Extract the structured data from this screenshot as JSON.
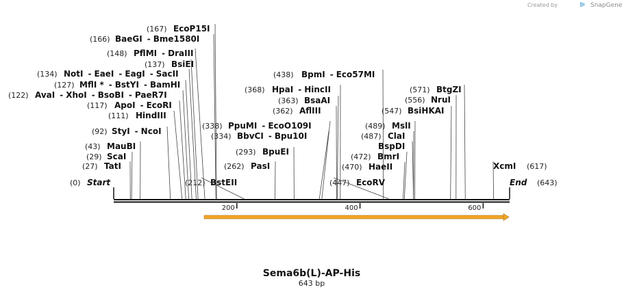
{
  "credit": {
    "prefix": "Created by",
    "brand": "SnapGene"
  },
  "title": "Sema6b(L)-AP-His",
  "subtitle": "643 bp",
  "sequence": {
    "length": 643
  },
  "ruler": {
    "ticks": [
      200,
      400,
      600
    ]
  },
  "feature": {
    "start": 147,
    "end": 643,
    "direction": "forward",
    "color": "#f2a629"
  },
  "ends": {
    "start": {
      "label": "Start",
      "pos": "(0)"
    },
    "end": {
      "label": "End",
      "pos": "(643)"
    }
  },
  "sites": [
    {
      "pos": "(167)",
      "names": [
        "EcoP15I"
      ],
      "site": 167
    },
    {
      "pos": "(166)",
      "names": [
        "BaeGI",
        "Bme1580I"
      ],
      "site": 166
    },
    {
      "pos": "(148)",
      "names": [
        "PflMI",
        "DraIII"
      ],
      "site": 148
    },
    {
      "pos": "(137)",
      "names": [
        "BsiEI"
      ],
      "site": 137
    },
    {
      "pos": "(134)",
      "names": [
        "NotI",
        "EaeI",
        "EagI",
        "SacII"
      ],
      "site": 134
    },
    {
      "pos": "(127)",
      "names": [
        "MflI *",
        "BstYI",
        "BamHI"
      ],
      "site": 127
    },
    {
      "pos": "(122)",
      "names": [
        "AvaI",
        "XhoI",
        "BsoBI",
        "PaeR7I"
      ],
      "site": 122
    },
    {
      "pos": "(117)",
      "names": [
        "ApoI",
        "EcoRI"
      ],
      "site": 117
    },
    {
      "pos": "(111)",
      "names": [
        "HindIII"
      ],
      "site": 111
    },
    {
      "pos": "(92)",
      "names": [
        "StyI",
        "NcoI"
      ],
      "site": 92
    },
    {
      "pos": "(43)",
      "names": [
        "MauBI"
      ],
      "site": 43
    },
    {
      "pos": "(29)",
      "names": [
        "ScaI"
      ],
      "site": 29
    },
    {
      "pos": "(27)",
      "names": [
        "TatI"
      ],
      "site": 27
    },
    {
      "pos": "(212)",
      "names": [
        "BstEII"
      ],
      "site": 212
    },
    {
      "pos": "(438)",
      "names": [
        "BpmI",
        "Eco57MI"
      ],
      "site": 438
    },
    {
      "pos": "(368)",
      "names": [
        "HpaI",
        "HincII"
      ],
      "site": 368
    },
    {
      "pos": "(363)",
      "names": [
        "BsaAI"
      ],
      "site": 363
    },
    {
      "pos": "(362)",
      "names": [
        "AflIII"
      ],
      "site": 362
    },
    {
      "pos": "(338)",
      "names": [
        "PpuMI",
        "EcoO109I"
      ],
      "site": 338
    },
    {
      "pos": "(334)",
      "names": [
        "BbvCI",
        "Bpu10I"
      ],
      "site": 334
    },
    {
      "pos": "(293)",
      "names": [
        "BpuEI"
      ],
      "site": 293
    },
    {
      "pos": "(262)",
      "names": [
        "PasI"
      ],
      "site": 262
    },
    {
      "pos": "(447)",
      "names": [
        "EcoRV"
      ],
      "site": 447
    },
    {
      "pos": "(571)",
      "names": [
        "BtgZI"
      ],
      "site": 571
    },
    {
      "pos": "(556)",
      "names": [
        "NruI"
      ],
      "site": 556
    },
    {
      "pos": "(547)",
      "names": [
        "BsiHKAI"
      ],
      "site": 547
    },
    {
      "pos": "(489)",
      "names": [
        "MslI"
      ],
      "site": 489
    },
    {
      "pos": "(487)",
      "names": [
        "ClaI"
      ],
      "site": 487
    },
    {
      "pos": "",
      "names": [
        "BspDI"
      ],
      "site": 487
    },
    {
      "pos": "(472)",
      "names": [
        "BmrI"
      ],
      "site": 472
    },
    {
      "pos": "(470)",
      "names": [
        "HaeII"
      ],
      "site": 470
    },
    {
      "pos": "(617)",
      "names": [
        "XcmI"
      ],
      "site": 617
    }
  ]
}
